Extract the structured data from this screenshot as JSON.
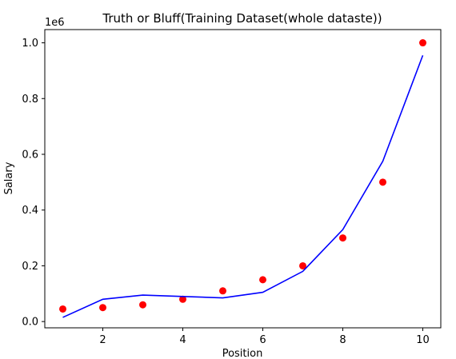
{
  "chart_data": {
    "type": "scatter",
    "title": "Truth or Bluff(Training Dataset(whole dataste))",
    "xlabel": "Position",
    "ylabel": "Salary",
    "y_offset_label": "1e6",
    "xlim": [
      0.55,
      10.45
    ],
    "ylim": [
      -0.0225,
      1.0475
    ],
    "x_ticks": [
      2,
      4,
      6,
      8,
      10
    ],
    "x_tick_labels": [
      "2",
      "4",
      "6",
      "8",
      "10"
    ],
    "y_ticks": [
      0.0,
      0.2,
      0.4,
      0.6,
      0.8,
      1.0
    ],
    "y_tick_labels": [
      "0.0",
      "0.2",
      "0.4",
      "0.6",
      "0.8",
      "1.0"
    ],
    "grid": false,
    "series": [
      {
        "kind": "scatter",
        "color": "#ff0000",
        "x": [
          1,
          2,
          3,
          4,
          5,
          6,
          7,
          8,
          9,
          10
        ],
        "y": [
          0.045,
          0.05,
          0.06,
          0.08,
          0.11,
          0.15,
          0.2,
          0.3,
          0.5,
          1.0
        ]
      },
      {
        "kind": "line",
        "color": "#0000ff",
        "x": [
          1,
          2,
          3,
          4,
          5,
          6,
          7,
          8,
          9,
          10
        ],
        "y": [
          0.015,
          0.08,
          0.095,
          0.09,
          0.085,
          0.105,
          0.18,
          0.33,
          0.575,
          0.955
        ]
      }
    ]
  }
}
